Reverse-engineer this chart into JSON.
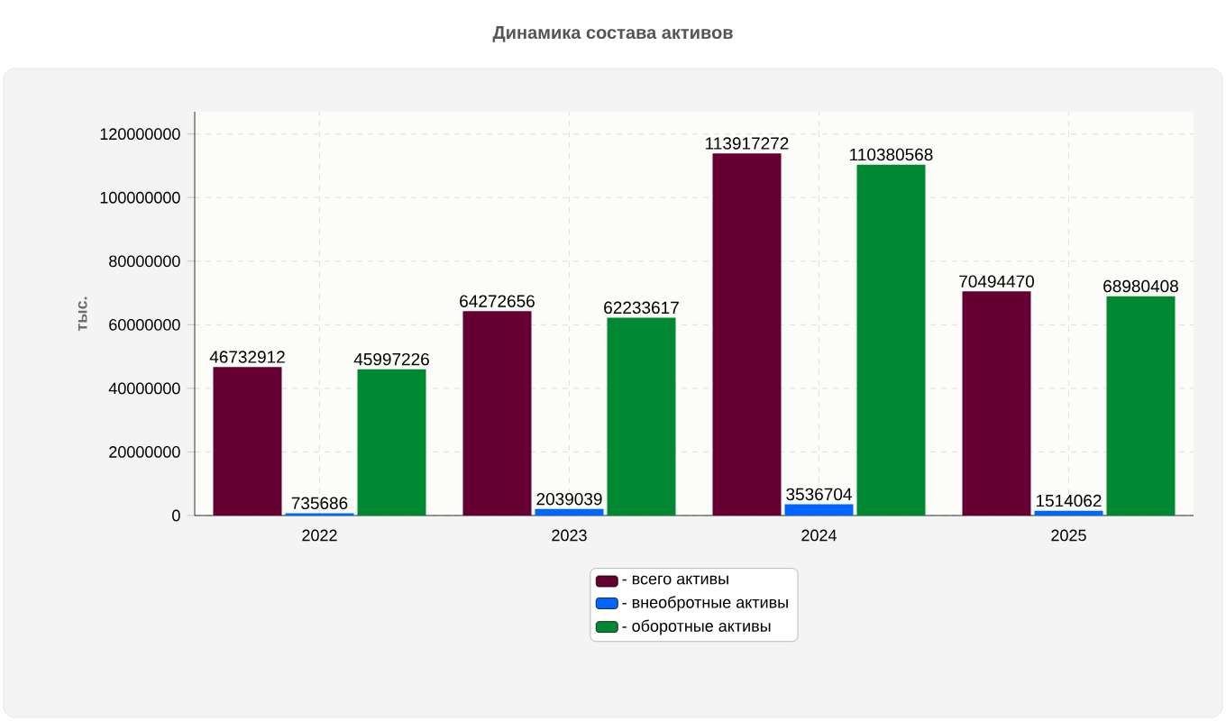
{
  "chart_data": {
    "type": "bar",
    "title": "Динамика состава активов",
    "ylabel": "тыс.",
    "categories": [
      "2022",
      "2023",
      "2024",
      "2025"
    ],
    "series": [
      {
        "name": "- всего активы",
        "color": "#660033",
        "values": [
          46732912,
          64272656,
          113917272,
          70494470
        ]
      },
      {
        "name": "- внеобротные активы",
        "color": "#0066ff",
        "values": [
          735686,
          2039039,
          3536704,
          1514062
        ]
      },
      {
        "name": "- оборотные активы",
        "color": "#008833",
        "values": [
          45997226,
          62233617,
          110380568,
          68980408
        ]
      }
    ],
    "ylim": [
      0,
      127000000
    ],
    "yticks": [
      0,
      20000000,
      40000000,
      60000000,
      80000000,
      100000000,
      120000000
    ],
    "grid": true,
    "legend": "bottom",
    "data_labels": true
  }
}
